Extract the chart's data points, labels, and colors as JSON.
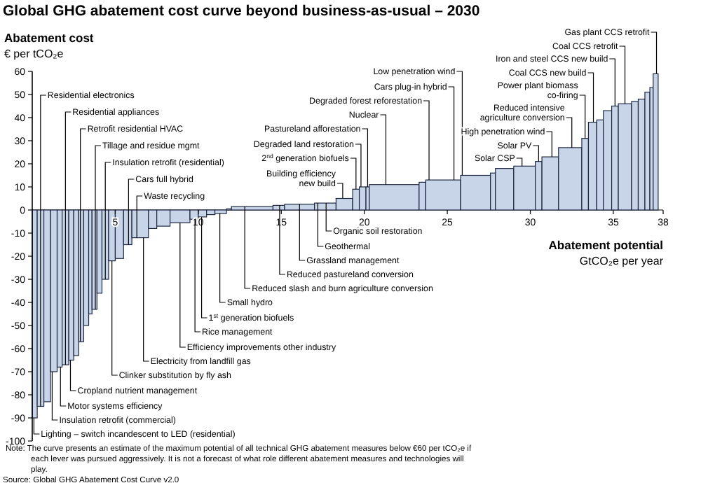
{
  "chart_data": {
    "type": "histogram",
    "title": "Global GHG abatement cost curve beyond business-as-usual – 2030",
    "ylabel": "Abatement cost\n€ per tCO₂e",
    "xlabel": "Abatement potential\nGtCO₂e per year",
    "bins": [
      0,
      0.3,
      0.7,
      1.1,
      1.5,
      1.8,
      2.2,
      2.5,
      2.8,
      3.1,
      3.4,
      3.6,
      3.9,
      4.2,
      4.6,
      5.0,
      5.5,
      6.0,
      7.0,
      7.5,
      8.3,
      9.5,
      10.0,
      10.5,
      11.0,
      11.7,
      12.0,
      14.5,
      15.2,
      17.0,
      18.3,
      19.3,
      19.7,
      20.1,
      20.3,
      23.3,
      23.7,
      25.8,
      27.6,
      27.9,
      29.0,
      30.3,
      30.7,
      31.7,
      33.1,
      33.5,
      34.0,
      34.4,
      34.9,
      35.3,
      36.1,
      36.5,
      36.9,
      37.2,
      37.4,
      37.7
    ],
    "values": [
      -90,
      -85,
      -83,
      -70,
      -68,
      -67,
      -65,
      -63,
      -57,
      -50,
      -45,
      -43,
      -36,
      -30,
      -22,
      -21,
      -15,
      -12,
      -8,
      -7,
      -5.5,
      -4,
      -3,
      -2,
      -1.5,
      0.5,
      1.5,
      2,
      2.5,
      3,
      5,
      9,
      10,
      10,
      11,
      12,
      13,
      15,
      16,
      18,
      19,
      21,
      23,
      27,
      31,
      38,
      39,
      43,
      45,
      46,
      47,
      48,
      51,
      53,
      59
    ],
    "color": "#c8d4e8",
    "xlim": [
      0,
      38
    ],
    "xticks": [
      5,
      10,
      15,
      20,
      25,
      30,
      35,
      38
    ],
    "ylim": [
      -100,
      60
    ],
    "yticks": [
      60,
      50,
      40,
      30,
      20,
      10,
      0,
      -10,
      -20,
      -30,
      -40,
      -50,
      -60,
      -70,
      -80,
      -90,
      -100
    ],
    "grid": false,
    "annotations": [
      {
        "text": "Residential electronics",
        "x": 0.5,
        "y": -85
      },
      {
        "text": "Residential appliances",
        "x": 2.0,
        "y": -67
      },
      {
        "text": "Retrofit residential HVAC",
        "x": 2.9,
        "y": -57
      },
      {
        "text": "Tillage and residue mgmt",
        "x": 3.8,
        "y": -43
      },
      {
        "text": "Insulation retrofit (residential)",
        "x": 4.4,
        "y": -30
      },
      {
        "text": "Cars full hybrid",
        "x": 5.8,
        "y": -15
      },
      {
        "text": "Waste recycling",
        "x": 6.3,
        "y": -12
      },
      {
        "text": "Lighting – switch incandescent to LED (residential)",
        "x": 0.1,
        "y": -90
      },
      {
        "text": "Insulation retrofit (commercial)",
        "x": 1.2,
        "y": -70
      },
      {
        "text": "Motor systems efficiency",
        "x": 1.7,
        "y": -68
      },
      {
        "text": "Cropland nutrient management",
        "x": 2.3,
        "y": -65
      },
      {
        "text": "Clinker substitution by fly ash",
        "x": 4.8,
        "y": -22
      },
      {
        "text": "Electricity from landfill gas",
        "x": 6.7,
        "y": -12
      },
      {
        "text": "Efficiency improvements other industry",
        "x": 8.9,
        "y": -5.5
      },
      {
        "text": "Rice management",
        "x": 9.8,
        "y": -4
      },
      {
        "text": "1$^{st}$ generation biofuels",
        "x": 10.2,
        "y": -3
      },
      {
        "text": "Small hydro",
        "x": 11.3,
        "y": -1.5
      },
      {
        "text": "Reduced slash and burn agriculture conversion",
        "x": 12.8,
        "y": 1.5
      },
      {
        "text": "Reduced pastureland conversion",
        "x": 14.9,
        "y": 2
      },
      {
        "text": "Grassland management",
        "x": 16.1,
        "y": 2.5
      },
      {
        "text": "Geothermal",
        "x": 17.2,
        "y": 3
      },
      {
        "text": "Organic soil restoration",
        "x": 17.7,
        "y": 3
      },
      {
        "text": "Building efficiency\nnew build",
        "x": 18.7,
        "y": 5
      },
      {
        "text": "2$^{nd}$ generation biofuels",
        "x": 19.5,
        "y": 9
      },
      {
        "text": "Degraded land restoration",
        "x": 19.8,
        "y": 10
      },
      {
        "text": "Pastureland afforestation",
        "x": 20.2,
        "y": 10
      },
      {
        "text": "Nuclear",
        "x": 21.3,
        "y": 11
      },
      {
        "text": "Degraded forest reforestation",
        "x": 23.9,
        "y": 13
      },
      {
        "text": "Cars plug-in hybrid",
        "x": 25.4,
        "y": 13
      },
      {
        "text": "Low penetration wind",
        "x": 25.9,
        "y": 15
      },
      {
        "text": "Solar CSP",
        "x": 29.5,
        "y": 19
      },
      {
        "text": "Solar PV",
        "x": 30.5,
        "y": 21
      },
      {
        "text": "High penetration wind",
        "x": 31.3,
        "y": 23
      },
      {
        "text": "Reduced intensive\nagriculture conversion",
        "x": 32.5,
        "y": 27
      },
      {
        "text": "Power plant biomass\nco-firing",
        "x": 33.3,
        "y": 31
      },
      {
        "text": "Coal CCS new build",
        "x": 33.8,
        "y": 38
      },
      {
        "text": "Iron and steel CCS new build",
        "x": 35.1,
        "y": 45
      },
      {
        "text": "Coal CCS retrofit",
        "x": 35.7,
        "y": 46
      },
      {
        "text": "Gas plant CCS retrofit",
        "x": 37.6,
        "y": 59
      },
      "Note: The curve presents an estimate of the maximum potential of all technical GHG abatement measures below €60 per tCO₂e if each lever was pursued aggressively. It is not a forecast of what role different abatement measures and technologies will play.",
      "Source: Global GHG Abatement Cost Curve v2.0"
    ]
  }
}
